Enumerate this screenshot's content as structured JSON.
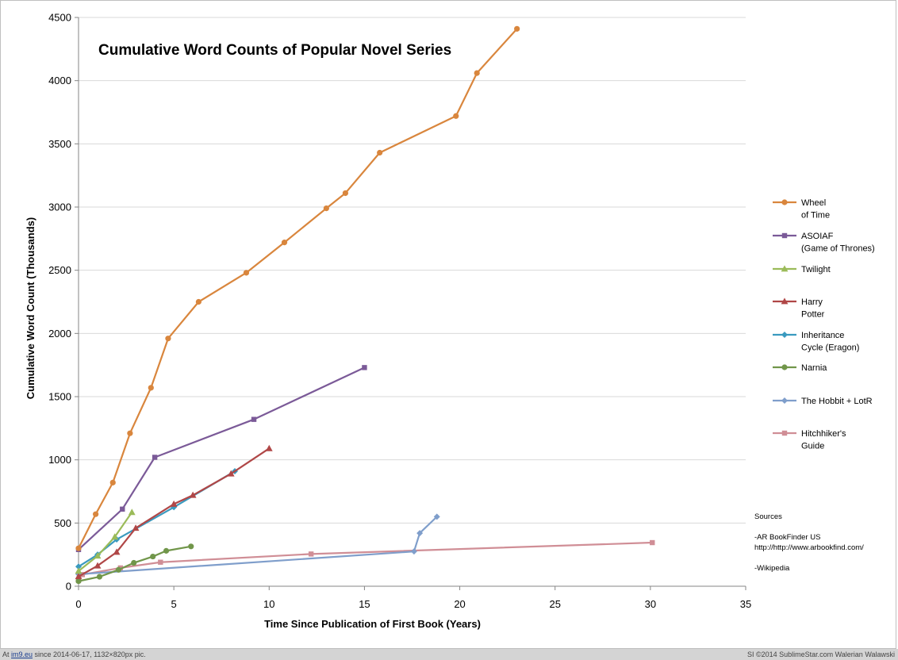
{
  "chart_data": {
    "type": "line",
    "title": "Cumulative Word Counts of Popular Novel Series",
    "xlabel": "Time Since Publication of First Book (Years)",
    "ylabel": "Cumulative Word Count (Thousands)",
    "xlim": [
      0,
      35
    ],
    "ylim": [
      0,
      4500
    ],
    "xticks": [
      "0",
      "5",
      "10",
      "15",
      "20",
      "25",
      "30",
      "35"
    ],
    "yticks": [
      "0",
      "500",
      "1000",
      "1500",
      "2000",
      "2500",
      "3000",
      "3500",
      "4000",
      "4500"
    ],
    "grid": "horizontal",
    "legend_position": "right",
    "series": [
      {
        "name": "Wheel of Time",
        "legend_lines": [
          "Wheel",
          "of Time"
        ],
        "color": "#D9863D",
        "marker": "circle",
        "x": [
          0,
          0.9,
          1.8,
          2.7,
          3.8,
          4.7,
          6.3,
          8.8,
          10.8,
          13,
          14,
          15.8,
          19.8,
          20.9,
          23
        ],
        "y": [
          300,
          570,
          820,
          1210,
          1570,
          1960,
          2250,
          2480,
          2720,
          2990,
          3110,
          3430,
          3720,
          4060,
          4410
        ]
      },
      {
        "name": "ASOIAF (Game of Thrones)",
        "legend_lines": [
          "ASOIAF",
          "(Game of Thrones)"
        ],
        "color": "#7B5A98",
        "marker": "square",
        "x": [
          0,
          2.3,
          4,
          9.2,
          15
        ],
        "y": [
          290,
          610,
          1020,
          1320,
          1730
        ]
      },
      {
        "name": "Twilight",
        "legend_lines": [
          "Twilight"
        ],
        "color": "#9BBB59",
        "marker": "triangle",
        "x": [
          0,
          1,
          1.9,
          2.8
        ],
        "y": [
          120,
          240,
          390,
          585
        ]
      },
      {
        "name": "Harry Potter",
        "legend_lines": [
          "Harry",
          "Potter"
        ],
        "color": "#B04747",
        "marker": "triangle",
        "x": [
          0,
          1,
          2,
          3,
          5,
          6,
          8,
          10
        ],
        "y": [
          77,
          162,
          270,
          460,
          650,
          720,
          890,
          1090
        ]
      },
      {
        "name": "Inheritance Cycle (Eragon)",
        "legend_lines": [
          "Inheritance",
          "Cycle (Eragon)"
        ],
        "color": "#3A9ABF",
        "marker": "diamond",
        "x": [
          0,
          1,
          2,
          5,
          8.2
        ],
        "y": [
          155,
          250,
          370,
          625,
          910
        ]
      },
      {
        "name": "Narnia",
        "legend_lines": [
          "Narnia"
        ],
        "color": "#71964A",
        "marker": "circle",
        "x": [
          0,
          1.1,
          2.1,
          2.9,
          3.9,
          4.6,
          5.9
        ],
        "y": [
          40,
          75,
          130,
          185,
          235,
          280,
          315
        ]
      },
      {
        "name": "The Hobbit + LotR",
        "legend_lines": [
          "The Hobbit + LotR"
        ],
        "color": "#7F9ECB",
        "marker": "diamond",
        "x": [
          0,
          17.6,
          17.9,
          18.8
        ],
        "y": [
          95,
          275,
          420,
          550
        ]
      },
      {
        "name": "Hitchhiker's Guide",
        "legend_lines": [
          "Hitchhiker's",
          "Guide"
        ],
        "color": "#D08E96",
        "marker": "square",
        "x": [
          0,
          0.2,
          2.2,
          4.3,
          12.2,
          30.1
        ],
        "y": [
          46,
          92,
          145,
          190,
          255,
          345
        ]
      }
    ]
  },
  "sources": {
    "heading": "Sources",
    "line1": "-AR BookFinder US",
    "line2": "http://http://www.arbookfind.com/",
    "line3": "-Wikipedia"
  },
  "footer": {
    "left_prefix": "At ",
    "left_site": "im9.eu",
    "left_suffix": " since 2014-06-17, 1132×820px pic.",
    "right": "SI ©2014 SublimeStar.com Walerian Walawski"
  }
}
